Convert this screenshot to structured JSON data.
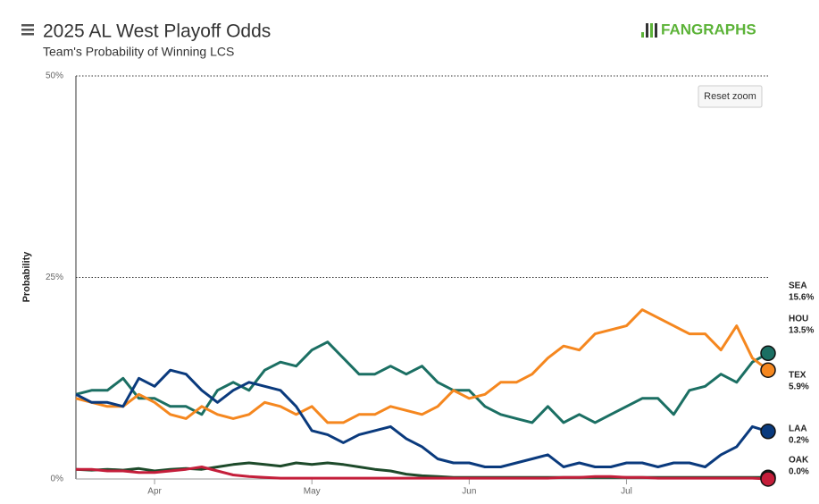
{
  "chart_data": {
    "type": "line",
    "title": "2025 AL West Playoff Odds",
    "subtitle": "Team's Probability of Winning LCS",
    "y_label": "Probability",
    "logo": "FANGRAPHS",
    "reset_button": "Reset zoom",
    "categories": [
      null,
      null,
      null,
      null,
      null,
      "Apr",
      null,
      null,
      null,
      null,
      null,
      null,
      null,
      null,
      null,
      "May",
      null,
      null,
      null,
      null,
      null,
      null,
      null,
      null,
      null,
      "Jun",
      null,
      null,
      null,
      null,
      null,
      null,
      null,
      null,
      null,
      "Jul",
      null,
      null,
      null,
      null,
      null,
      null,
      null,
      null,
      null
    ],
    "ylim": [
      0,
      50
    ],
    "yticks": [
      {
        "value": 0,
        "label": "0%"
      },
      {
        "value": 25,
        "label": "25%"
      },
      {
        "value": 50,
        "label": "50%"
      }
    ],
    "grid": true,
    "series": [
      {
        "name": "SEA",
        "end_label": "15.6%",
        "color": "#1b6f63",
        "values": [
          10.5,
          11,
          11,
          12.5,
          10,
          10,
          9,
          9,
          8,
          11,
          12,
          11,
          13.5,
          14.5,
          14,
          16,
          17,
          15,
          13,
          13,
          14,
          13,
          14,
          12,
          11,
          11,
          9,
          8,
          7.5,
          7,
          9,
          7,
          8,
          7,
          8,
          9,
          10,
          10,
          8,
          11,
          11.5,
          13,
          12,
          14.5,
          15.6
        ]
      },
      {
        "name": "HOU",
        "end_label": "13.5%",
        "color": "#f5871f",
        "values": [
          10,
          9.5,
          9,
          9,
          10.5,
          9.5,
          8,
          7.5,
          9,
          8,
          7.5,
          8,
          9.5,
          9,
          8,
          9,
          7,
          7,
          8,
          8,
          9,
          8.5,
          8,
          9,
          11,
          10,
          10.5,
          12,
          12,
          13,
          15,
          16.5,
          16,
          18,
          18.5,
          19,
          21,
          20,
          19,
          18,
          18,
          16,
          19,
          15,
          13.5
        ]
      },
      {
        "name": "TEX",
        "end_label": "5.9%",
        "color": "#0a3a7d",
        "values": [
          10.5,
          9.5,
          9.5,
          9,
          12.5,
          11.5,
          13.5,
          13,
          11,
          9.5,
          11,
          12,
          11.5,
          11,
          9,
          6,
          5.5,
          4.5,
          5.5,
          6,
          6.5,
          5,
          4,
          2.5,
          2,
          2,
          1.5,
          1.5,
          2,
          2.5,
          3,
          1.5,
          2,
          1.5,
          1.5,
          2,
          2,
          1.5,
          2,
          2,
          1.5,
          3,
          4,
          6.5,
          5.9
        ]
      },
      {
        "name": "LAA",
        "end_label": "0.2%",
        "color": "#1d4a2a",
        "values": [
          1.2,
          1.1,
          1.2,
          1.1,
          1.3,
          1.0,
          1.2,
          1.3,
          1.2,
          1.5,
          1.8,
          2,
          1.8,
          1.6,
          2,
          1.8,
          2,
          1.8,
          1.5,
          1.2,
          1.0,
          0.6,
          0.4,
          0.3,
          0.2,
          0.2,
          0.2,
          0.2,
          0.2,
          0.2,
          0.2,
          0.2,
          0.2,
          0.2,
          0.2,
          0.2,
          0.2,
          0.2,
          0.2,
          0.2,
          0.2,
          0.2,
          0.2,
          0.2,
          0.2
        ]
      },
      {
        "name": "OAK",
        "end_label": "0.0%",
        "color": "#c41e3a",
        "values": [
          1.2,
          1.2,
          1.0,
          1.0,
          0.8,
          0.8,
          1.0,
          1.2,
          1.5,
          1.0,
          0.5,
          0.3,
          0.2,
          0.1,
          0.1,
          0.1,
          0.1,
          0.1,
          0.1,
          0.1,
          0.1,
          0.1,
          0.1,
          0.1,
          0.1,
          0.1,
          0.1,
          0.1,
          0.1,
          0.1,
          0.1,
          0.2,
          0.2,
          0.3,
          0.3,
          0.2,
          0.2,
          0.1,
          0.1,
          0.1,
          0.1,
          0.1,
          0.1,
          0.1,
          0.0
        ]
      }
    ]
  }
}
